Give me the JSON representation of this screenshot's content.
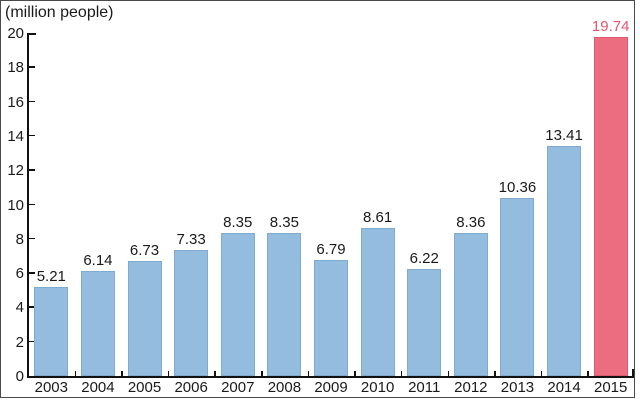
{
  "chart_data": {
    "type": "bar",
    "title": "",
    "unit_label": "(million people)",
    "categories": [
      "2003",
      "2004",
      "2005",
      "2006",
      "2007",
      "2008",
      "2009",
      "2010",
      "2011",
      "2012",
      "2013",
      "2014",
      "2015"
    ],
    "values": [
      5.21,
      6.14,
      6.73,
      7.33,
      8.35,
      8.35,
      6.79,
      8.61,
      6.22,
      8.36,
      10.36,
      13.41,
      19.74
    ],
    "value_labels": [
      "5.21",
      "6.14",
      "6.73",
      "7.33",
      "8.35",
      "8.35",
      "6.79",
      "8.61",
      "6.22",
      "8.36",
      "10.36",
      "13.41",
      "19.74"
    ],
    "highlight_index": 12,
    "ylim": [
      0,
      20
    ],
    "ytick_step": 2,
    "grid": false,
    "legend": "none",
    "colors": {
      "bar_fill": "#94bcdf",
      "bar_border": "#7fabd0",
      "highlight_fill": "#ec6d80",
      "highlight_border": "#de5a6e",
      "highlight_label": "#e4566c",
      "text": "#1a1a1a",
      "axis": "#111111",
      "frame_border": "#4a4a4a",
      "background": "#ffffff"
    }
  }
}
